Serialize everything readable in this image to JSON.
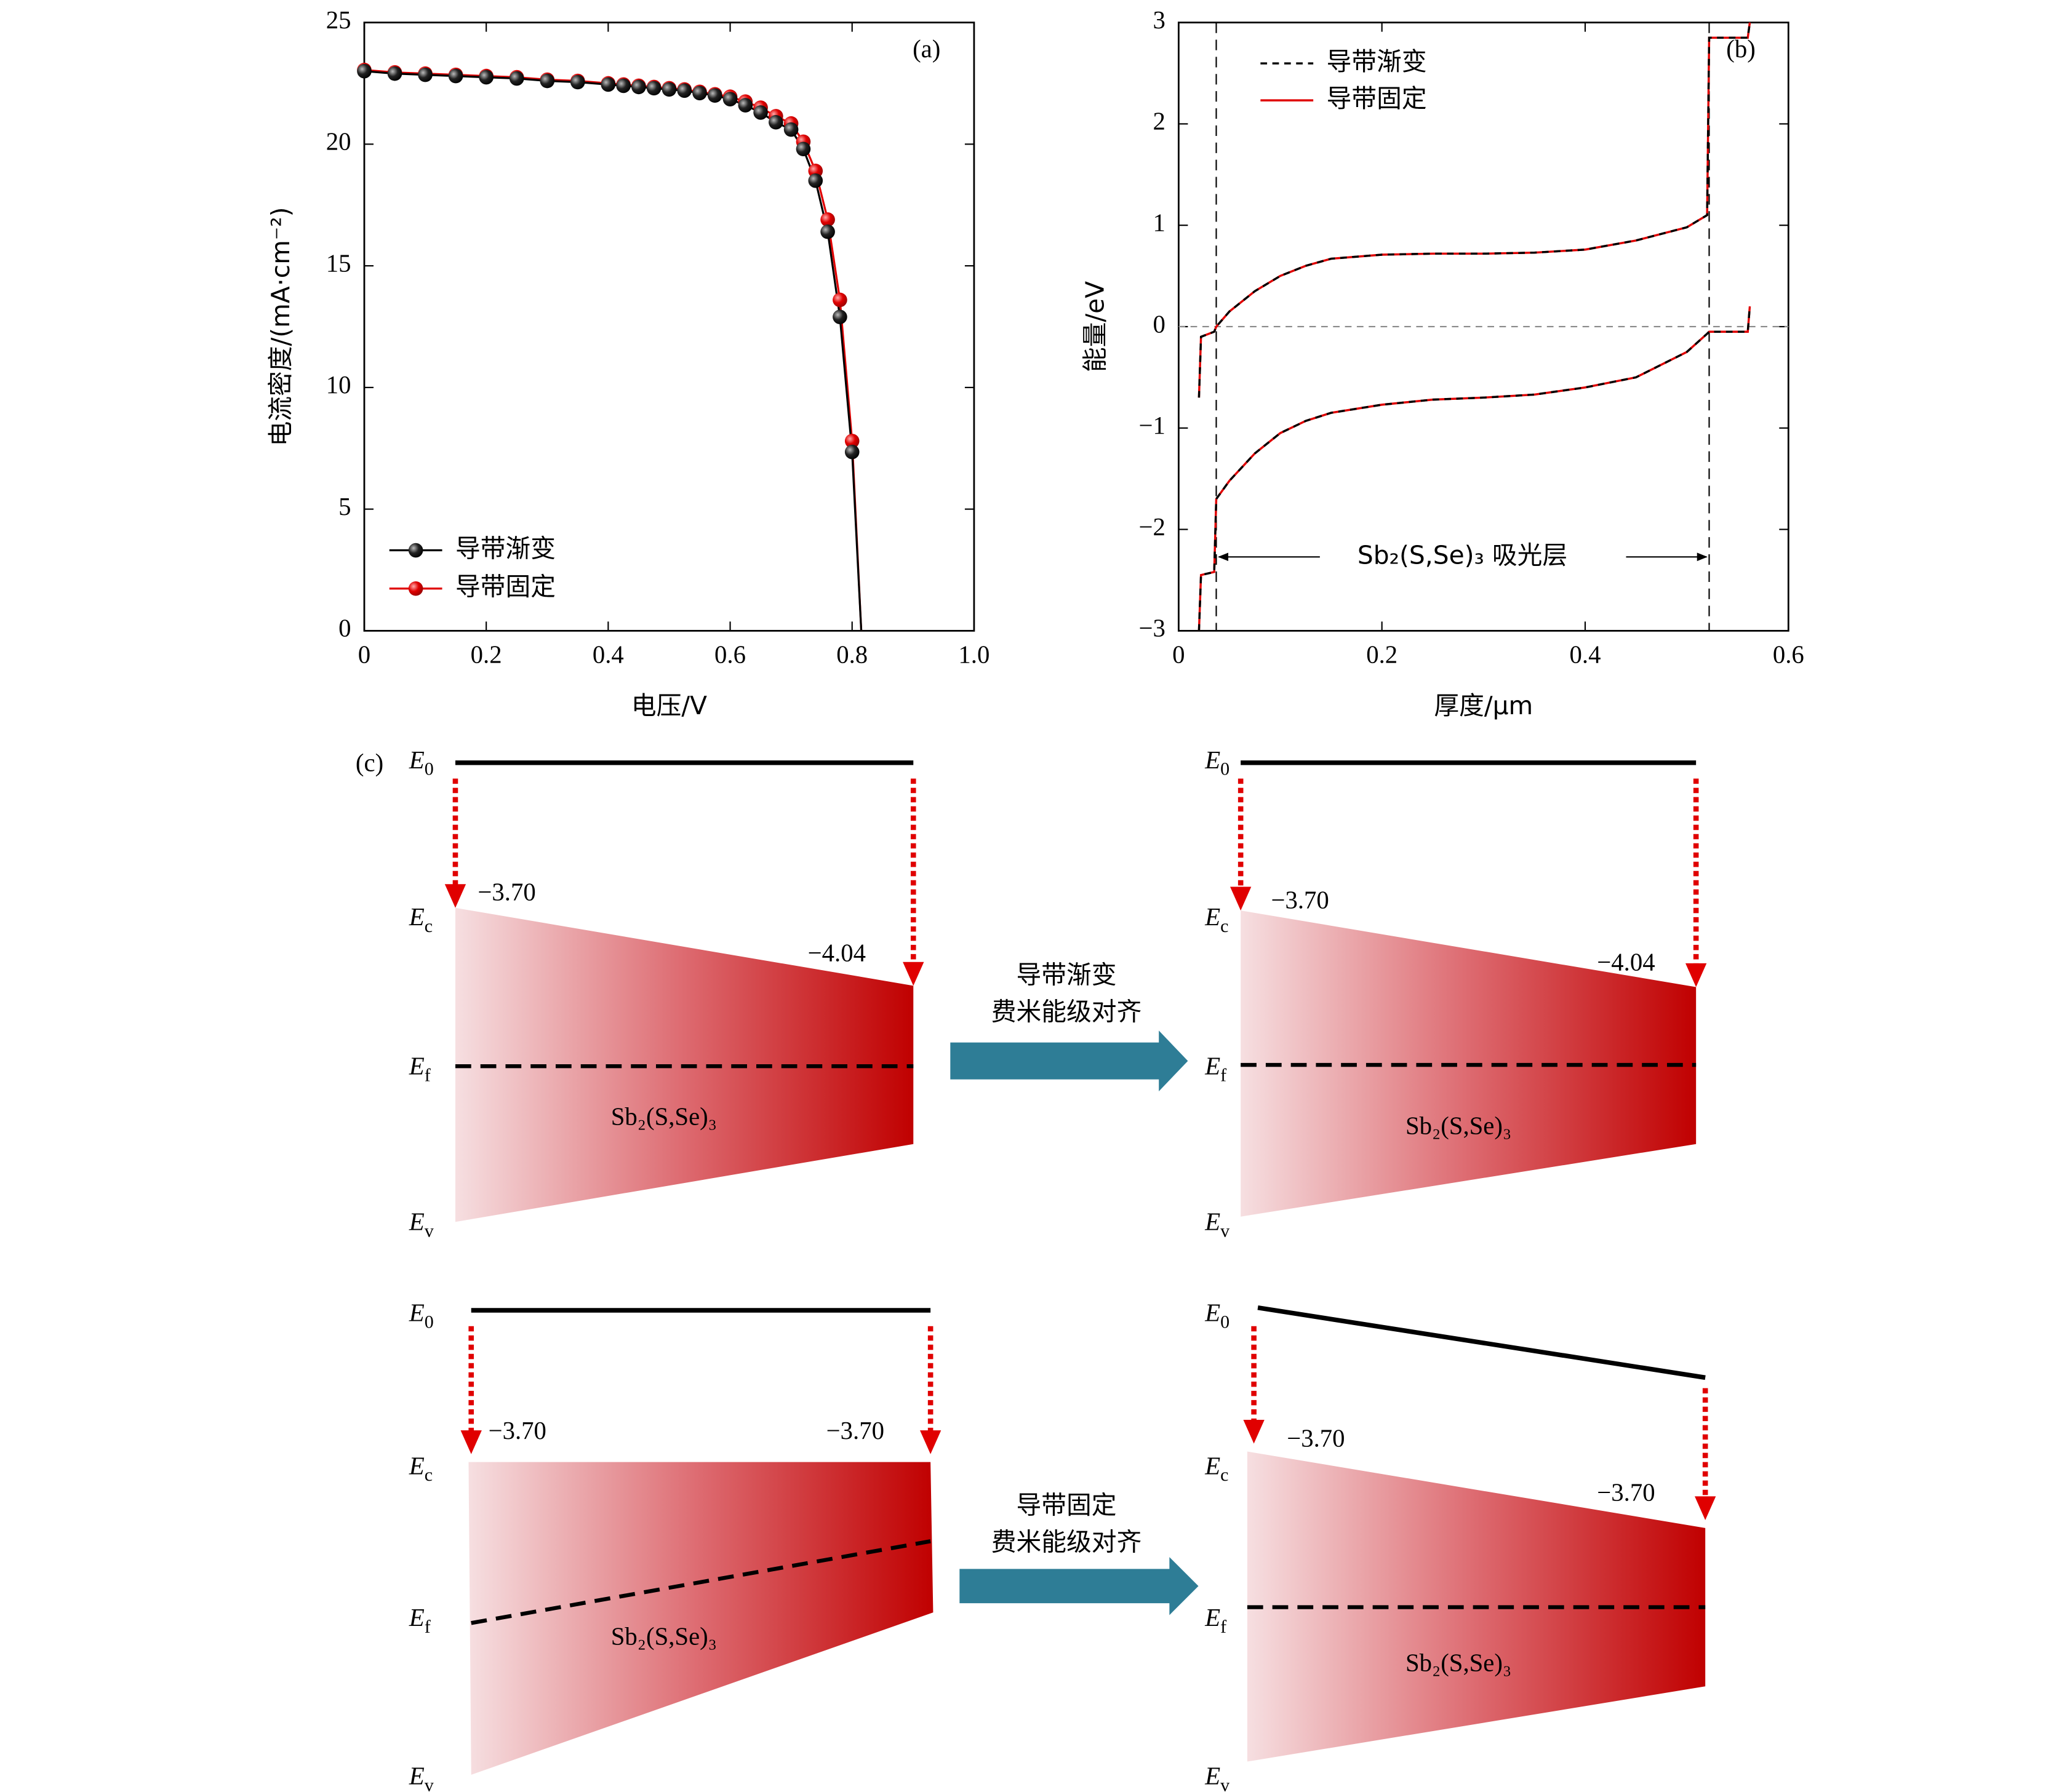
{
  "chart_data": [
    {
      "type": "line",
      "label": "(a)",
      "xlabel": "电压/V",
      "ylabel": "电流密度/(mA·cm⁻²)",
      "xlim": [
        0,
        1
      ],
      "xticks": [
        0,
        0.2,
        0.4,
        0.6,
        0.8,
        {
          "value": 1,
          "label": "1.0"
        }
      ],
      "ylim": [
        0,
        25
      ],
      "yticks": [
        0,
        5,
        10,
        15,
        20,
        25
      ],
      "legend": "lower left",
      "x": [
        0,
        0.05,
        0.1,
        0.15,
        0.2,
        0.25,
        0.3,
        0.35,
        0.4,
        0.425,
        0.45,
        0.475,
        0.5,
        0.525,
        0.55,
        0.575,
        0.6,
        0.625,
        0.65,
        0.675,
        0.7,
        0.72,
        0.74,
        0.76,
        0.78,
        0.8,
        0.815
      ],
      "series": [
        {
          "name": "导带渐变",
          "color": "#000000",
          "values": [
            23.0,
            22.9,
            22.85,
            22.8,
            22.75,
            22.7,
            22.6,
            22.55,
            22.45,
            22.4,
            22.35,
            22.3,
            22.25,
            22.2,
            22.1,
            22.0,
            21.85,
            21.6,
            21.3,
            20.9,
            20.6,
            19.8,
            18.5,
            16.4,
            12.9,
            7.35,
            0
          ]
        },
        {
          "name": "导带固定",
          "color": "#e00000",
          "values": [
            23.05,
            22.95,
            22.9,
            22.85,
            22.8,
            22.75,
            22.65,
            22.6,
            22.5,
            22.45,
            22.4,
            22.35,
            22.3,
            22.25,
            22.15,
            22.05,
            21.95,
            21.75,
            21.5,
            21.15,
            20.85,
            20.1,
            18.9,
            16.9,
            13.6,
            7.8,
            0
          ]
        }
      ]
    },
    {
      "type": "band",
      "label": "(b)",
      "xlabel": "厚度/μm",
      "ylabel": "能量/eV",
      "xlim": [
        0,
        0.6
      ],
      "xticks": [
        0,
        0.2,
        0.4,
        0.6
      ],
      "ylim": [
        -3,
        3
      ],
      "yticks": [
        {
          "value": -3,
          "label": "−3"
        },
        {
          "value": -2,
          "label": "−2"
        },
        {
          "value": -1,
          "label": "−1"
        },
        0,
        1,
        2,
        3
      ],
      "legend": "upper left",
      "vlines": [
        0.037,
        0.522
      ],
      "hline": 0,
      "annotation": "Sb₂(S,Se)₃ 吸光层",
      "x": [
        0.02,
        0.022,
        0.035,
        0.037,
        0.05,
        0.075,
        0.1,
        0.125,
        0.15,
        0.2,
        0.25,
        0.3,
        0.35,
        0.4,
        0.45,
        0.5,
        0.52,
        0.522,
        0.56,
        0.562
      ],
      "series": [
        {
          "name": "导带渐变",
          "color": "#000000",
          "dash": true,
          "curves": [
            [
              -0.7,
              -0.1,
              -0.05,
              0,
              0.15,
              0.35,
              0.5,
              0.6,
              0.67,
              0.71,
              0.72,
              0.72,
              0.73,
              0.76,
              0.85,
              0.98,
              1.1,
              2.85,
              2.85,
              3.0
            ],
            [
              -3.0,
              -2.45,
              -2.42,
              -1.7,
              -1.52,
              -1.25,
              -1.05,
              -0.93,
              -0.85,
              -0.77,
              -0.72,
              -0.7,
              -0.67,
              -0.6,
              -0.5,
              -0.25,
              -0.07,
              -0.05,
              -0.05,
              0.2
            ]
          ]
        },
        {
          "name": "导带固定",
          "color": "#e00000",
          "dash": false,
          "curves": [
            [
              -0.7,
              -0.1,
              -0.05,
              0,
              0.15,
              0.35,
              0.5,
              0.6,
              0.67,
              0.71,
              0.72,
              0.72,
              0.73,
              0.76,
              0.85,
              0.98,
              1.1,
              2.85,
              2.85,
              3.0
            ],
            [
              -3.0,
              -2.45,
              -2.42,
              -1.7,
              -1.52,
              -1.25,
              -1.05,
              -0.93,
              -0.85,
              -0.77,
              -0.72,
              -0.7,
              -0.67,
              -0.6,
              -0.5,
              -0.25,
              -0.07,
              -0.05,
              -0.05,
              0.2
            ]
          ]
        }
      ]
    }
  ],
  "diagram": {
    "label": "(c)",
    "levels": [
      {
        "main": "E",
        "sub": "0"
      },
      {
        "main": "E",
        "sub": "c"
      },
      {
        "main": "E",
        "sub": "f"
      },
      {
        "main": "E",
        "sub": "v"
      }
    ],
    "panels": [
      {
        "left": "−3.70",
        "right": "−4.04",
        "material": "Sb₂(S,Se)₃"
      },
      {
        "left": "−3.70",
        "right": "−4.04",
        "material": "Sb₂(S,Se)₃"
      },
      {
        "left": "−3.70",
        "right": "−3.70",
        "material": "Sb₂(S,Se)₃"
      },
      {
        "left": "−3.70",
        "right": "−3.70",
        "material": "Sb₂(S,Se)₃"
      }
    ],
    "arrows": [
      [
        "导带渐变",
        "费米能级对齐"
      ],
      [
        "导带固定",
        "费米能级对齐"
      ]
    ]
  }
}
